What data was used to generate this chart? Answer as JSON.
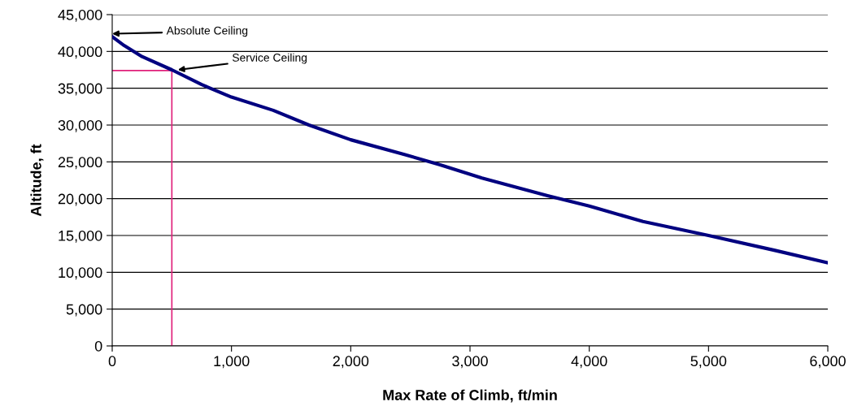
{
  "chart_data": {
    "type": "line",
    "xlabel": "Max Rate of Climb, ft/min",
    "ylabel": "Altitude, ft",
    "x": [
      0,
      100,
      250,
      500,
      750,
      1000,
      1350,
      1650,
      2000,
      2450,
      2750,
      3100,
      3650,
      4000,
      4450,
      5000,
      5550,
      6000
    ],
    "series": [
      {
        "color": "#000080",
        "values": [
          42000,
          40800,
          39300,
          37500,
          35500,
          33800,
          32000,
          30000,
          28000,
          26000,
          24600,
          22800,
          20400,
          19000,
          16900,
          15000,
          13000,
          11300
        ]
      }
    ],
    "xlim": [
      0,
      6000
    ],
    "xticks": [
      {
        "value": 0,
        "label": "0"
      },
      {
        "value": 1000,
        "label": "1,000"
      },
      {
        "value": 2000,
        "label": "2,000"
      },
      {
        "value": 3000,
        "label": "3,000"
      },
      {
        "value": 4000,
        "label": "4,000"
      },
      {
        "value": 5000,
        "label": "5,000"
      },
      {
        "value": 6000,
        "label": "6,000"
      }
    ],
    "ylim": [
      0,
      45000
    ],
    "yticks": [
      {
        "value": 0,
        "label": "0"
      },
      {
        "value": 5000,
        "label": "5,000"
      },
      {
        "value": 10000,
        "label": "10,000"
      },
      {
        "value": 15000,
        "label": "15,000"
      },
      {
        "value": 20000,
        "label": "20,000"
      },
      {
        "value": 25000,
        "label": "25,000"
      },
      {
        "value": 30000,
        "label": "30,000"
      },
      {
        "value": 35000,
        "label": "35,000"
      },
      {
        "value": 40000,
        "label": "40,000"
      },
      {
        "value": 45000,
        "label": "45,000"
      }
    ],
    "grid": "y",
    "legend": false,
    "marker": "none",
    "line_style": "solid",
    "ref_lines": [
      {
        "axis": "x",
        "value": 500,
        "color": "#e0207a"
      },
      {
        "axis": "y",
        "value": 37400,
        "color": "#e0207a"
      }
    ],
    "annotations": [
      {
        "text": "Absolute Ceiling",
        "x": 0,
        "y": 42400
      },
      {
        "text": "Service Ceiling",
        "x": 550,
        "y": 37500
      }
    ]
  }
}
